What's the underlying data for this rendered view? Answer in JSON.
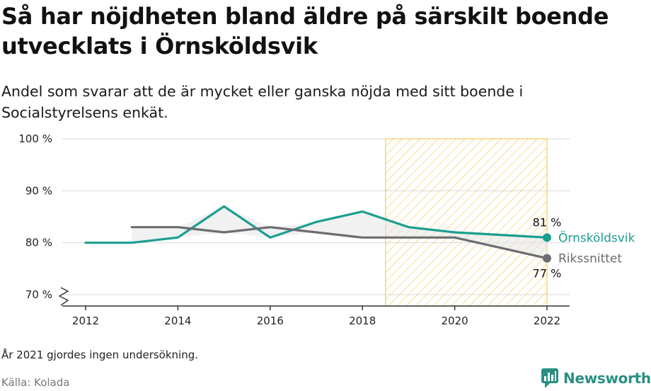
{
  "title": "Så har nöjdheten bland äldre på särskilt boende utvecklats i Örnsköldsvik",
  "subtitle": "Andel som svarar att de är mycket eller ganska nöjda med sitt boende i Socialstyrelsens enkät.",
  "footnote": "År 2021 gjordes ingen undersökning.",
  "source": "Källa: Kolada",
  "brand": "Newsworthy",
  "colors": {
    "highlight": "#1a9e8f",
    "average": "#6c6c72",
    "hatch": "#f5c95a",
    "band": "#e6e6e6",
    "grid": "#d9d9d9",
    "brand": "#2a8f82"
  },
  "chart_data": {
    "type": "line",
    "x": [
      2012,
      2013,
      2014,
      2015,
      2016,
      2017,
      2018,
      2019,
      2020,
      2022
    ],
    "series": [
      {
        "name": "Örnsköldsvik",
        "color": "#1a9e8f",
        "values": [
          80,
          80,
          81,
          87,
          81,
          84,
          86,
          83,
          82,
          81
        ],
        "end_label": "81 %"
      },
      {
        "name": "Rikssnittet",
        "color": "#6c6c72",
        "values": [
          null,
          83,
          83,
          82,
          83,
          82,
          81,
          81,
          81,
          77
        ],
        "end_label": "77 %"
      }
    ],
    "x_ticks": [
      "2012",
      "2014",
      "2016",
      "2018",
      "2020",
      "2022"
    ],
    "y_ticks": [
      "70 %",
      "80 %",
      "90 %",
      "100 %"
    ],
    "y_tick_values": [
      70,
      80,
      90,
      100
    ],
    "xlim": [
      2012,
      2022
    ],
    "ylim": [
      70,
      100
    ],
    "y_axis_break": true,
    "hatched_period": [
      2018.5,
      2022
    ],
    "grid": true
  }
}
